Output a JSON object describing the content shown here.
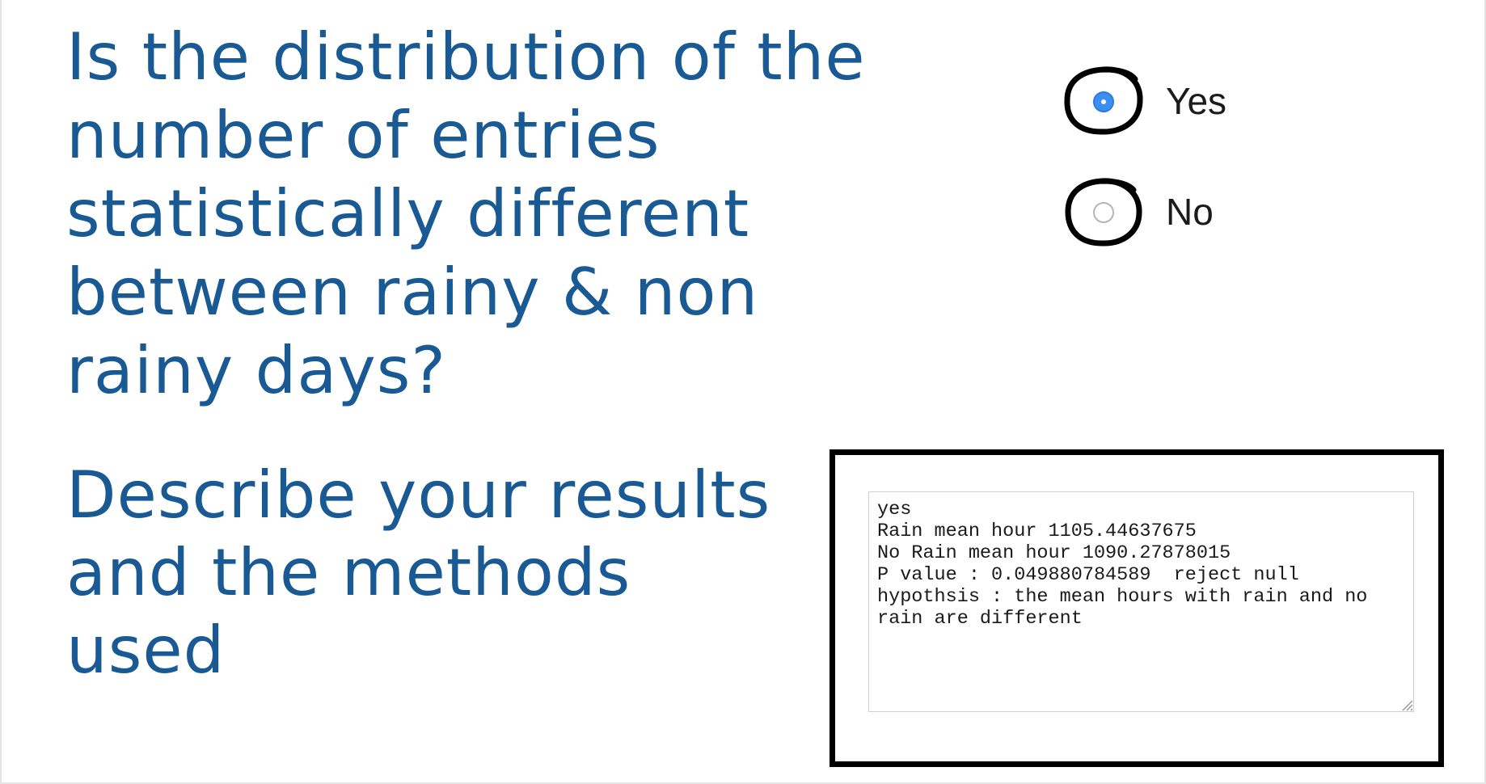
{
  "question": {
    "text": "Is the distribution of the number of entries statistically different between rainy & non rainy days?"
  },
  "options": {
    "yes": {
      "label": "Yes",
      "checked": true
    },
    "no": {
      "label": "No",
      "checked": false
    }
  },
  "describe": {
    "text": "Describe your results and the methods used"
  },
  "answer": {
    "value": "yes\nRain mean hour 1105.44637675\nNo Rain mean hour 1090.27878015\nP value : 0.049880784589  reject null hypothsis : the mean hours with rain and no rain are different"
  },
  "colors": {
    "heading": "#1a5a94",
    "radio_selected": "#3b8ff2",
    "annotation": "#000000"
  },
  "icons": {
    "radio_annotation": "hand-drawn-circle",
    "resize_grip": "resize-grip-icon"
  }
}
